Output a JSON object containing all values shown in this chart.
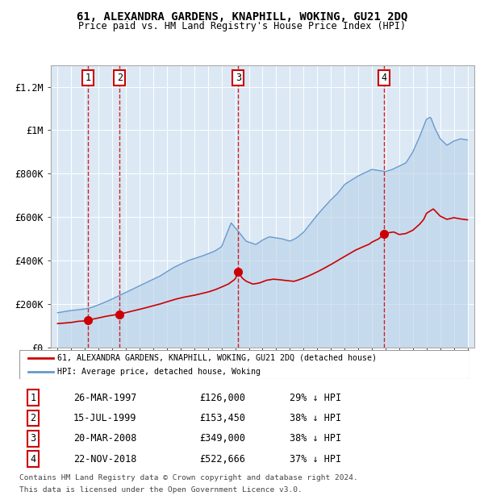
{
  "title": "61, ALEXANDRA GARDENS, KNAPHILL, WOKING, GU21 2DQ",
  "subtitle": "Price paid vs. HM Land Registry's House Price Index (HPI)",
  "legend_label_red": "61, ALEXANDRA GARDENS, KNAPHILL, WOKING, GU21 2DQ (detached house)",
  "legend_label_blue": "HPI: Average price, detached house, Woking",
  "footer_line1": "Contains HM Land Registry data © Crown copyright and database right 2024.",
  "footer_line2": "This data is licensed under the Open Government Licence v3.0.",
  "sales": [
    {
      "num": 1,
      "date_label": "26-MAR-1997",
      "date_x": 1997.23,
      "price": 126000,
      "hpi_pct": "29% ↓ HPI"
    },
    {
      "num": 2,
      "date_label": "15-JUL-1999",
      "date_x": 1999.54,
      "price": 153450,
      "hpi_pct": "38% ↓ HPI"
    },
    {
      "num": 3,
      "date_label": "20-MAR-2008",
      "date_x": 2008.22,
      "price": 349000,
      "hpi_pct": "38% ↓ HPI"
    },
    {
      "num": 4,
      "date_label": "22-NOV-2018",
      "date_x": 2018.89,
      "price": 522666,
      "hpi_pct": "37% ↓ HPI"
    }
  ],
  "ylim": [
    0,
    1300000
  ],
  "xlim": [
    1994.5,
    2025.5
  ],
  "yticks": [
    0,
    200000,
    400000,
    600000,
    800000,
    1000000,
    1200000
  ],
  "ytick_labels": [
    "£0",
    "£200K",
    "£400K",
    "£600K",
    "£800K",
    "£1M",
    "£1.2M"
  ],
  "background_color": "#dce9f5",
  "red_line_color": "#cc0000",
  "blue_line_color": "#6699cc",
  "grid_color": "#ffffff",
  "dashed_line_color": "#cc0000",
  "marker_color": "#cc0000",
  "hpi_anchors": [
    [
      1995.0,
      160000
    ],
    [
      1996.0,
      170000
    ],
    [
      1997.0,
      178000
    ],
    [
      1997.5,
      185000
    ],
    [
      1998.5,
      210000
    ],
    [
      1999.5,
      240000
    ],
    [
      2000.5,
      270000
    ],
    [
      2001.5,
      300000
    ],
    [
      2002.5,
      330000
    ],
    [
      2003.5,
      370000
    ],
    [
      2004.5,
      400000
    ],
    [
      2005.5,
      420000
    ],
    [
      2006.5,
      445000
    ],
    [
      2007.0,
      465000
    ],
    [
      2007.7,
      575000
    ],
    [
      2008.3,
      530000
    ],
    [
      2008.8,
      490000
    ],
    [
      2009.5,
      475000
    ],
    [
      2010.0,
      495000
    ],
    [
      2010.5,
      510000
    ],
    [
      2011.0,
      505000
    ],
    [
      2011.5,
      500000
    ],
    [
      2012.0,
      490000
    ],
    [
      2012.5,
      505000
    ],
    [
      2013.0,
      530000
    ],
    [
      2013.5,
      570000
    ],
    [
      2014.0,
      610000
    ],
    [
      2014.5,
      645000
    ],
    [
      2015.0,
      680000
    ],
    [
      2015.5,
      710000
    ],
    [
      2016.0,
      750000
    ],
    [
      2016.5,
      770000
    ],
    [
      2017.0,
      790000
    ],
    [
      2017.5,
      805000
    ],
    [
      2018.0,
      820000
    ],
    [
      2018.5,
      815000
    ],
    [
      2019.0,
      810000
    ],
    [
      2019.5,
      820000
    ],
    [
      2020.0,
      835000
    ],
    [
      2020.5,
      850000
    ],
    [
      2021.0,
      900000
    ],
    [
      2021.5,
      970000
    ],
    [
      2021.8,
      1020000
    ],
    [
      2022.0,
      1050000
    ],
    [
      2022.3,
      1060000
    ],
    [
      2022.6,
      1010000
    ],
    [
      2023.0,
      960000
    ],
    [
      2023.5,
      930000
    ],
    [
      2024.0,
      950000
    ],
    [
      2024.5,
      960000
    ],
    [
      2025.0,
      955000
    ]
  ],
  "red_anchors": [
    [
      1995.0,
      110000
    ],
    [
      1995.5,
      112000
    ],
    [
      1996.0,
      115000
    ],
    [
      1996.5,
      120000
    ],
    [
      1997.0,
      122000
    ],
    [
      1997.23,
      126000
    ],
    [
      1997.8,
      133000
    ],
    [
      1998.5,
      143000
    ],
    [
      1999.0,
      148000
    ],
    [
      1999.54,
      153450
    ],
    [
      2000.0,
      160000
    ],
    [
      2000.5,
      167000
    ],
    [
      2001.0,
      175000
    ],
    [
      2001.5,
      183000
    ],
    [
      2002.0,
      192000
    ],
    [
      2002.5,
      200000
    ],
    [
      2003.0,
      210000
    ],
    [
      2003.5,
      220000
    ],
    [
      2004.0,
      228000
    ],
    [
      2004.5,
      235000
    ],
    [
      2005.0,
      240000
    ],
    [
      2005.5,
      248000
    ],
    [
      2006.0,
      255000
    ],
    [
      2006.5,
      265000
    ],
    [
      2007.0,
      278000
    ],
    [
      2007.5,
      292000
    ],
    [
      2008.0,
      315000
    ],
    [
      2008.22,
      349000
    ],
    [
      2008.5,
      320000
    ],
    [
      2008.8,
      305000
    ],
    [
      2009.3,
      292000
    ],
    [
      2009.8,
      298000
    ],
    [
      2010.3,
      310000
    ],
    [
      2010.8,
      315000
    ],
    [
      2011.3,
      312000
    ],
    [
      2011.8,
      308000
    ],
    [
      2012.3,
      305000
    ],
    [
      2012.8,
      315000
    ],
    [
      2013.3,
      328000
    ],
    [
      2013.8,
      342000
    ],
    [
      2014.3,
      358000
    ],
    [
      2014.8,
      375000
    ],
    [
      2015.3,
      393000
    ],
    [
      2015.8,
      412000
    ],
    [
      2016.3,
      430000
    ],
    [
      2016.8,
      448000
    ],
    [
      2017.3,
      462000
    ],
    [
      2017.8,
      475000
    ],
    [
      2018.0,
      485000
    ],
    [
      2018.5,
      500000
    ],
    [
      2018.89,
      522666
    ],
    [
      2019.2,
      528000
    ],
    [
      2019.6,
      532000
    ],
    [
      2020.0,
      520000
    ],
    [
      2020.5,
      525000
    ],
    [
      2021.0,
      540000
    ],
    [
      2021.5,
      568000
    ],
    [
      2021.8,
      590000
    ],
    [
      2022.0,
      618000
    ],
    [
      2022.3,
      630000
    ],
    [
      2022.5,
      638000
    ],
    [
      2022.7,
      625000
    ],
    [
      2023.0,
      605000
    ],
    [
      2023.5,
      590000
    ],
    [
      2024.0,
      598000
    ],
    [
      2024.5,
      592000
    ],
    [
      2025.0,
      588000
    ]
  ]
}
